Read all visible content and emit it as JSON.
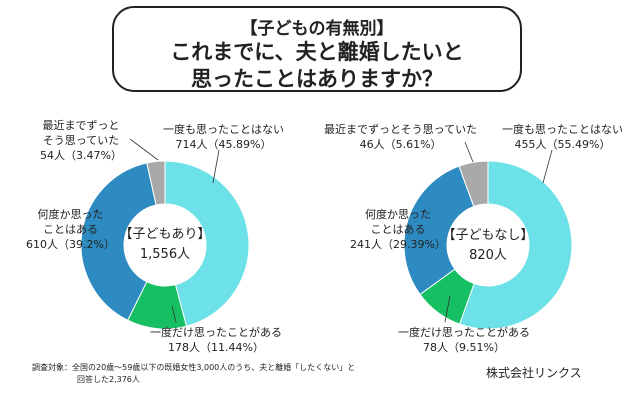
{
  "title": {
    "line1": "【子どもの有無別】",
    "line2": "これまでに、夫と離婚したいと",
    "line3": "思ったことはありますか？"
  },
  "colors": {
    "never": "#6ce1e7",
    "once": "#16c062",
    "several": "#2e8bc1",
    "until_recently": "#a9a9a9"
  },
  "chart_data": [
    {
      "type": "pie",
      "donut": true,
      "center_label": "【子どもあり】",
      "center_total": "1,556人",
      "slices": [
        {
          "label": "一度も思ったことはない",
          "count": 714,
          "percent": 45.89,
          "text": "714人（45.89%）"
        },
        {
          "label": "一度だけ思ったことがある",
          "count": 178,
          "percent": 11.44,
          "text": "178人（11.44%）"
        },
        {
          "label": "何度か思ったことはある",
          "count": 610,
          "percent": 39.2,
          "text": "610人（39.2%）"
        },
        {
          "label": "最近までずっとそう思っていた",
          "count": 54,
          "percent": 3.47,
          "text": "54人（3.47%）"
        }
      ]
    },
    {
      "type": "pie",
      "donut": true,
      "center_label": "【子どもなし】",
      "center_total": "820人",
      "slices": [
        {
          "label": "一度も思ったことはない",
          "count": 455,
          "percent": 55.49,
          "text": "455人（55.49%）"
        },
        {
          "label": "一度だけ思ったことがある",
          "count": 78,
          "percent": 9.51,
          "text": "78人（9.51%）"
        },
        {
          "label": "何度か思ったことはある",
          "count": 241,
          "percent": 29.39,
          "text": "241人（29.39%）"
        },
        {
          "label": "最近までずっとそう思っていた",
          "count": 46,
          "percent": 5.61,
          "text": "46人（5.61%）"
        }
      ]
    }
  ],
  "labels_left": {
    "until1": "最近までずっと",
    "until2": "そう思っていた",
    "several1": "何度か思った",
    "several2": "ことはある"
  },
  "labels_right": {
    "several1": "何度か思った",
    "several2": "ことはある"
  },
  "footnote": {
    "line1": "調査対象：全国の20歳〜59歳以下の既婚女性3,000人のうち、夫と離婚「したくない」と",
    "line2": "回答した2,376人"
  },
  "company": "株式会社リンクス"
}
